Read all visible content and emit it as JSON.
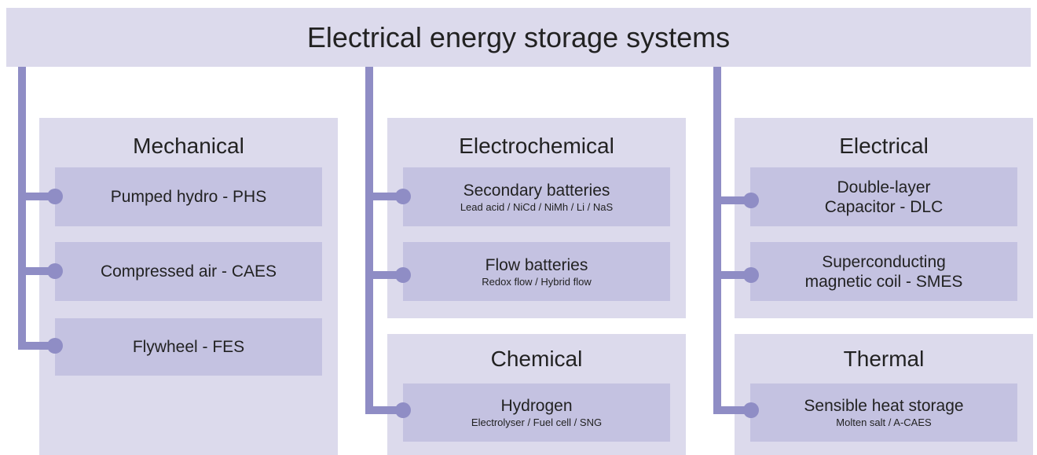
{
  "title": "Electrical energy storage systems",
  "groups": [
    {
      "title": "Mechanical",
      "items": [
        {
          "lines": [
            "Pumped hydro - PHS"
          ]
        },
        {
          "lines": [
            "Compressed air - CAES"
          ]
        },
        {
          "lines": [
            "Flywheel - FES"
          ]
        }
      ]
    },
    {
      "title": "Electrochemical",
      "items": [
        {
          "lines": [
            "Secondary batteries"
          ],
          "detail": "Lead acid / NiCd / NiMh / Li / NaS"
        },
        {
          "lines": [
            "Flow batteries"
          ],
          "detail": "Redox flow / Hybrid flow"
        }
      ]
    },
    {
      "title": "Chemical",
      "items": [
        {
          "lines": [
            "Hydrogen"
          ],
          "detail": "Electrolyser / Fuel cell / SNG"
        }
      ]
    },
    {
      "title": "Electrical",
      "items": [
        {
          "lines": [
            "Double-layer",
            "Capacitor - DLC"
          ]
        },
        {
          "lines": [
            "Superconducting",
            "magnetic coil - SMES"
          ]
        }
      ]
    },
    {
      "title": "Thermal",
      "items": [
        {
          "lines": [
            "Sensible heat storage"
          ],
          "detail": "Molten salt / A-CAES"
        }
      ]
    }
  ]
}
